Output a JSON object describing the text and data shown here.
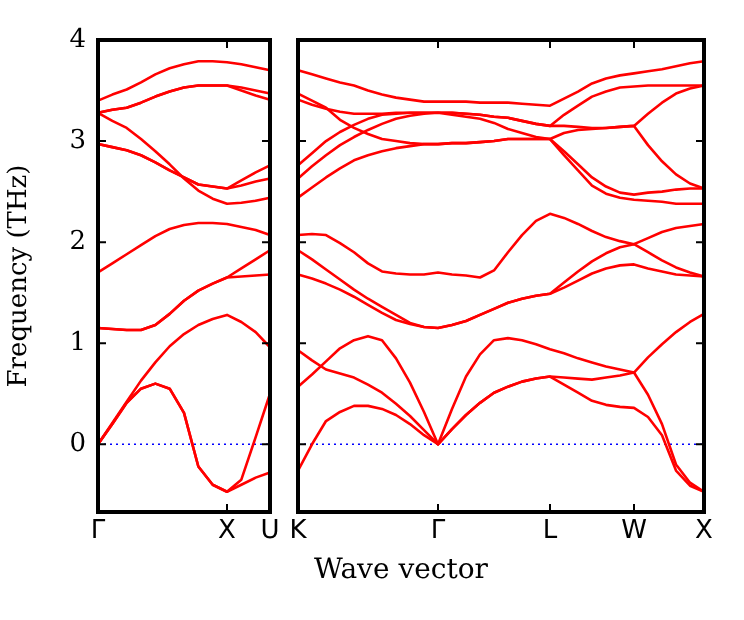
{
  "chart_data": [
    {
      "type": "line",
      "ylabel": "Frequency (THz)",
      "ylim": [
        -0.67,
        4
      ],
      "yticks": [
        0,
        1,
        2,
        3,
        4
      ],
      "categories": [
        "Γ",
        null,
        null,
        null,
        null,
        null,
        null,
        null,
        null,
        "X",
        null,
        null,
        "U"
      ],
      "ref_lines": [
        {
          "axis": "y",
          "value": 0,
          "color": "#0000ff",
          "line_style": "dotted"
        }
      ],
      "series": [
        {
          "color": "#ff0000",
          "values": [
            0,
            0.2,
            0.41,
            0.55,
            0.6,
            0.55,
            0.31,
            -0.22,
            -0.4,
            -0.47,
            -0.4,
            -0.33,
            -0.28
          ]
        },
        {
          "color": "#ff0000",
          "values": [
            0,
            0.2,
            0.41,
            0.55,
            0.6,
            0.55,
            0.31,
            -0.22,
            -0.4,
            -0.47,
            -0.35,
            0.07,
            0.5
          ]
        },
        {
          "color": "#ff0000",
          "values": [
            0,
            0.21,
            0.42,
            0.63,
            0.81,
            0.97,
            1.09,
            1.18,
            1.24,
            1.28,
            1.21,
            1.11,
            0.96
          ]
        },
        {
          "color": "#ff0000",
          "values": [
            1.15,
            1.14,
            1.13,
            1.13,
            1.18,
            1.29,
            1.42,
            1.52,
            1.59,
            1.65,
            1.66,
            1.67,
            1.68
          ]
        },
        {
          "color": "#ff0000",
          "values": [
            1.15,
            1.14,
            1.13,
            1.13,
            1.18,
            1.29,
            1.42,
            1.52,
            1.59,
            1.65,
            1.74,
            1.83,
            1.92
          ]
        },
        {
          "color": "#ff0000",
          "values": [
            1.7,
            1.79,
            1.88,
            1.97,
            2.06,
            2.13,
            2.17,
            2.19,
            2.19,
            2.18,
            2.15,
            2.12,
            2.07
          ]
        },
        {
          "color": "#ff0000",
          "values": [
            2.97,
            2.94,
            2.91,
            2.86,
            2.79,
            2.71,
            2.64,
            2.57,
            2.55,
            2.53,
            2.61,
            2.69,
            2.76
          ]
        },
        {
          "color": "#ff0000",
          "values": [
            2.97,
            2.94,
            2.91,
            2.86,
            2.79,
            2.71,
            2.64,
            2.57,
            2.55,
            2.53,
            2.56,
            2.6,
            2.63
          ]
        },
        {
          "color": "#ff0000",
          "values": [
            3.28,
            3.2,
            3.13,
            3.02,
            2.9,
            2.77,
            2.63,
            2.51,
            2.43,
            2.38,
            2.39,
            2.41,
            2.44
          ]
        },
        {
          "color": "#ff0000",
          "values": [
            3.28,
            3.31,
            3.33,
            3.38,
            3.44,
            3.49,
            3.53,
            3.55,
            3.55,
            3.55,
            3.53,
            3.5,
            3.47
          ]
        },
        {
          "color": "#ff0000",
          "values": [
            3.28,
            3.31,
            3.33,
            3.38,
            3.44,
            3.49,
            3.53,
            3.55,
            3.55,
            3.55,
            3.5,
            3.45,
            3.41
          ]
        },
        {
          "color": "#ff0000",
          "values": [
            3.4,
            3.46,
            3.51,
            3.58,
            3.66,
            3.72,
            3.76,
            3.79,
            3.79,
            3.78,
            3.76,
            3.73,
            3.7
          ]
        }
      ]
    },
    {
      "type": "line",
      "xlabel": "Wave vector",
      "tick_labels": "x",
      "ylim": [
        -0.67,
        4
      ],
      "yticks": [
        0,
        1,
        2,
        3,
        4
      ],
      "categories": [
        "K",
        null,
        null,
        null,
        null,
        null,
        null,
        null,
        null,
        null,
        "Γ",
        null,
        null,
        null,
        null,
        null,
        null,
        null,
        "L",
        null,
        null,
        null,
        null,
        null,
        "W",
        null,
        null,
        null,
        null,
        "X"
      ],
      "ref_lines": [
        {
          "axis": "y",
          "value": 0,
          "color": "#0000ff",
          "line_style": "dotted"
        }
      ],
      "series": [
        {
          "color": "#ff0000",
          "values": [
            -0.26,
            0.0,
            0.23,
            0.32,
            0.38,
            0.38,
            0.35,
            0.29,
            0.2,
            0.09,
            0,
            0.15,
            0.29,
            0.41,
            0.51,
            0.57,
            0.62,
            0.65,
            0.67,
            0.59,
            0.51,
            0.43,
            0.39,
            0.37,
            0.36,
            0.27,
            0.09,
            -0.26,
            -0.41,
            -0.47
          ]
        },
        {
          "color": "#ff0000",
          "values": [
            0.93,
            0.83,
            0.74,
            0.7,
            0.66,
            0.59,
            0.51,
            0.4,
            0.28,
            0.14,
            0,
            0.15,
            0.29,
            0.41,
            0.51,
            0.57,
            0.62,
            0.65,
            0.67,
            0.66,
            0.65,
            0.64,
            0.66,
            0.68,
            0.71,
            0.49,
            0.2,
            -0.2,
            -0.38,
            -0.47
          ]
        },
        {
          "color": "#ff0000",
          "values": [
            0.57,
            0.69,
            0.82,
            0.95,
            1.03,
            1.07,
            1.03,
            0.85,
            0.61,
            0.32,
            0,
            0.35,
            0.67,
            0.89,
            1.03,
            1.05,
            1.03,
            0.99,
            0.94,
            0.9,
            0.85,
            0.81,
            0.77,
            0.74,
            0.71,
            0.86,
            0.99,
            1.11,
            1.21,
            1.29
          ]
        },
        {
          "color": "#ff0000",
          "values": [
            1.68,
            1.64,
            1.59,
            1.53,
            1.46,
            1.38,
            1.3,
            1.23,
            1.19,
            1.16,
            1.15,
            1.18,
            1.22,
            1.28,
            1.34,
            1.4,
            1.44,
            1.47,
            1.49,
            1.55,
            1.62,
            1.69,
            1.74,
            1.77,
            1.78,
            1.74,
            1.71,
            1.68,
            1.67,
            1.66
          ]
        },
        {
          "color": "#ff0000",
          "values": [
            1.92,
            1.83,
            1.73,
            1.63,
            1.53,
            1.44,
            1.36,
            1.28,
            1.2,
            1.16,
            1.15,
            1.18,
            1.22,
            1.28,
            1.34,
            1.4,
            1.44,
            1.47,
            1.49,
            1.6,
            1.71,
            1.81,
            1.89,
            1.95,
            1.98,
            1.9,
            1.82,
            1.75,
            1.7,
            1.66
          ]
        },
        {
          "color": "#ff0000",
          "values": [
            2.07,
            2.08,
            2.07,
            1.99,
            1.9,
            1.79,
            1.71,
            1.69,
            1.68,
            1.68,
            1.7,
            1.68,
            1.67,
            1.65,
            1.72,
            1.9,
            2.07,
            2.21,
            2.28,
            2.24,
            2.18,
            2.11,
            2.05,
            2.01,
            1.98,
            2.04,
            2.1,
            2.14,
            2.16,
            2.18
          ]
        },
        {
          "color": "#ff0000",
          "values": [
            3.7,
            3.66,
            3.62,
            3.58,
            3.55,
            3.5,
            3.46,
            3.43,
            3.41,
            3.39,
            3.39,
            3.39,
            3.39,
            3.38,
            3.38,
            3.38,
            3.37,
            3.36,
            3.35,
            3.42,
            3.49,
            3.57,
            3.62,
            3.65,
            3.67,
            3.69,
            3.71,
            3.74,
            3.77,
            3.79
          ]
        },
        {
          "color": "#ff0000",
          "values": [
            3.41,
            3.36,
            3.32,
            3.29,
            3.27,
            3.27,
            3.27,
            3.28,
            3.28,
            3.28,
            3.28,
            3.28,
            3.27,
            3.26,
            3.24,
            3.23,
            3.2,
            3.17,
            3.15,
            3.26,
            3.35,
            3.44,
            3.49,
            3.53,
            3.54,
            3.55,
            3.55,
            3.55,
            3.55,
            3.55
          ]
        },
        {
          "color": "#ff0000",
          "values": [
            2.76,
            2.88,
            3.0,
            3.09,
            3.16,
            3.22,
            3.26,
            3.27,
            3.28,
            3.28,
            3.28,
            3.28,
            3.27,
            3.26,
            3.24,
            3.23,
            3.2,
            3.17,
            3.15,
            3.15,
            3.14,
            3.13,
            3.13,
            3.14,
            3.15,
            3.27,
            3.38,
            3.47,
            3.52,
            3.55
          ]
        },
        {
          "color": "#ff0000",
          "values": [
            2.63,
            2.75,
            2.86,
            2.96,
            3.04,
            3.11,
            3.17,
            3.22,
            3.25,
            3.27,
            3.28,
            3.26,
            3.24,
            3.22,
            3.18,
            3.12,
            3.08,
            3.04,
            3.02,
            3.08,
            3.11,
            3.12,
            3.13,
            3.14,
            3.15,
            2.96,
            2.8,
            2.67,
            2.58,
            2.53
          ]
        },
        {
          "color": "#ff0000",
          "values": [
            3.47,
            3.4,
            3.33,
            3.21,
            3.13,
            3.07,
            3.02,
            3.0,
            2.98,
            2.97,
            2.97,
            2.98,
            2.98,
            2.99,
            3.0,
            3.02,
            3.02,
            3.02,
            3.02,
            2.9,
            2.77,
            2.64,
            2.55,
            2.49,
            2.47,
            2.49,
            2.5,
            2.52,
            2.53,
            2.53
          ]
        },
        {
          "color": "#ff0000",
          "values": [
            2.44,
            2.54,
            2.64,
            2.73,
            2.81,
            2.86,
            2.9,
            2.93,
            2.95,
            2.97,
            2.97,
            2.98,
            2.98,
            2.99,
            3.0,
            3.02,
            3.02,
            3.02,
            3.02,
            2.86,
            2.71,
            2.56,
            2.48,
            2.44,
            2.42,
            2.41,
            2.4,
            2.38,
            2.38,
            2.38
          ]
        }
      ]
    }
  ]
}
